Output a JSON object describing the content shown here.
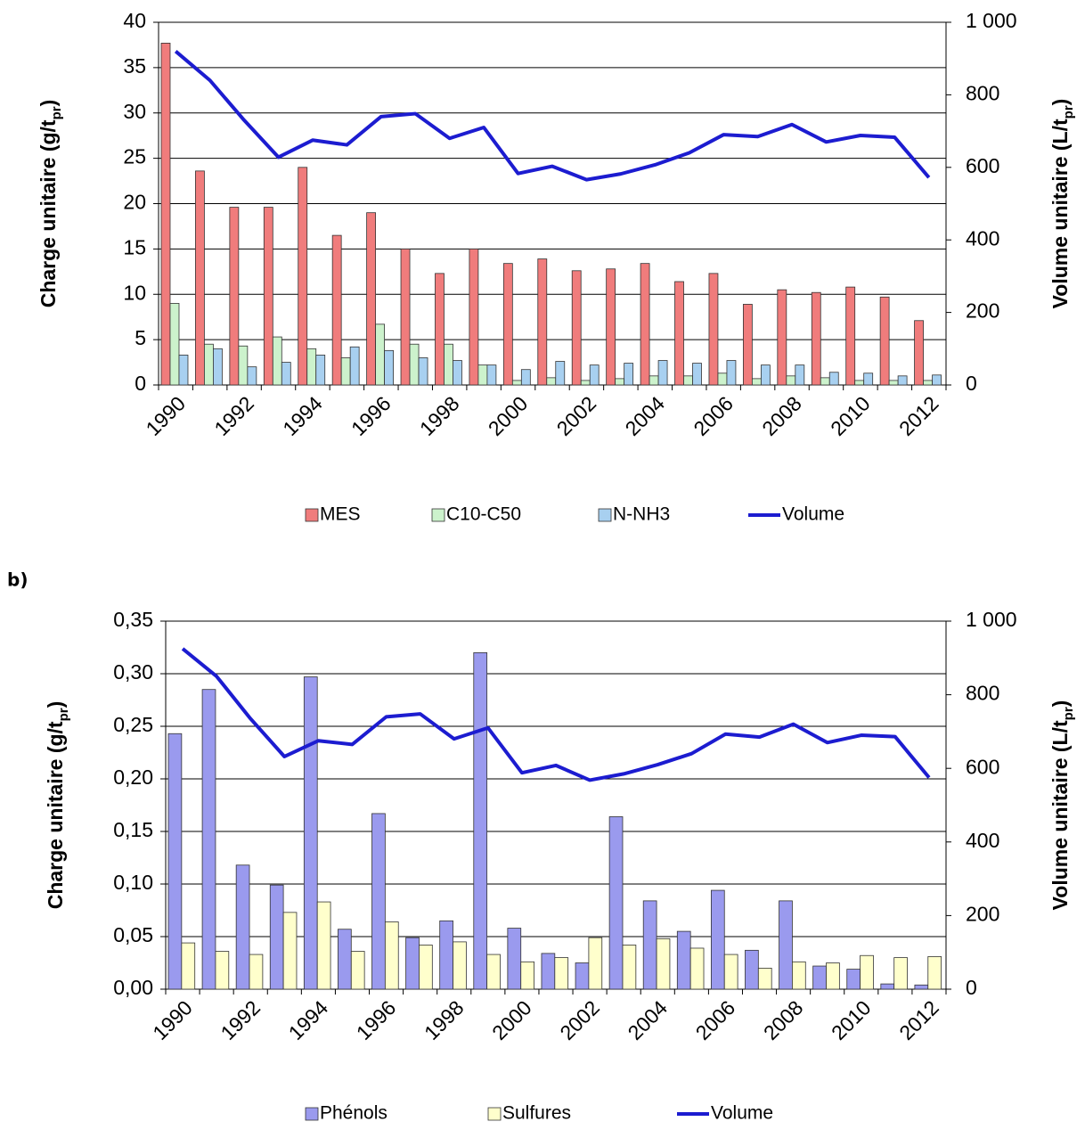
{
  "chart_data": [
    {
      "type": "bar",
      "categories": [
        "1990",
        null,
        "1992",
        null,
        "1994",
        null,
        "1996",
        null,
        "1998",
        null,
        "2000",
        null,
        "2002",
        null,
        "2004",
        null,
        "2006",
        null,
        "2008",
        null,
        "2010",
        null,
        "2012"
      ],
      "y_label": [
        "Charge unitaire (g/t",
        "pr",
        ")"
      ],
      "y2_label": [
        "Volume unitaire (L/t",
        "pr",
        ")"
      ],
      "ylim": [
        0,
        40
      ],
      "yticks": [
        0,
        5,
        10,
        15,
        20,
        25,
        30,
        35,
        40
      ],
      "y2lim": [
        0,
        1000
      ],
      "y2ticks": [
        0,
        200,
        400,
        600,
        800,
        {
          "value": 1000,
          "label": "1 000"
        }
      ],
      "grid": true,
      "series": [
        {
          "name": "MES",
          "color": "#f07c7c",
          "values": [
            37.7,
            23.6,
            19.6,
            19.6,
            24.0,
            16.5,
            19.0,
            15.0,
            12.3,
            15.0,
            13.4,
            13.9,
            12.6,
            12.8,
            13.4,
            11.4,
            12.3,
            8.9,
            10.5,
            10.2,
            10.8,
            9.7,
            7.1
          ]
        },
        {
          "name": "C10-C50",
          "color": "#ccf2cc",
          "values": [
            9.0,
            4.5,
            4.3,
            5.3,
            4.0,
            3.0,
            6.7,
            4.5,
            4.5,
            2.2,
            0.5,
            0.8,
            0.5,
            0.7,
            1.0,
            1.0,
            1.3,
            0.7,
            1.0,
            0.8,
            0.5,
            0.5,
            0.5
          ]
        },
        {
          "name": "N-NH3",
          "color": "#a8d0f0",
          "values": [
            3.3,
            4.0,
            2.0,
            2.5,
            3.3,
            4.2,
            3.8,
            3.0,
            2.7,
            2.2,
            1.7,
            2.6,
            2.2,
            2.4,
            2.7,
            2.4,
            2.7,
            2.2,
            2.2,
            1.4,
            1.3,
            1.0,
            1.1
          ]
        },
        {
          "name": "Volume",
          "type": "line",
          "axis": "y2",
          "color": "#1c1cd0",
          "values": [
            920,
            840,
            730,
            628,
            675,
            662,
            740,
            748,
            680,
            710,
            583,
            603,
            566,
            582,
            607,
            640,
            690,
            685,
            718,
            670,
            688,
            683,
            572
          ]
        }
      ]
    },
    {
      "type": "bar",
      "label": "b)",
      "categories": [
        "1990",
        null,
        "1992",
        null,
        "1994",
        null,
        "1996",
        null,
        "1998",
        null,
        "2000",
        null,
        "2002",
        null,
        "2004",
        null,
        "2006",
        null,
        "2008",
        null,
        "2010",
        null,
        "2012"
      ],
      "y_label": [
        "Charge unitaire (g/t",
        "pr",
        ")"
      ],
      "y2_label": [
        "Volume unitaire (L/t",
        "pr",
        ")"
      ],
      "ylim": [
        0,
        0.35
      ],
      "yticks": [
        {
          "value": 0,
          "label": "0,00"
        },
        {
          "value": 0.05,
          "label": "0,05"
        },
        {
          "value": 0.1,
          "label": "0,10"
        },
        {
          "value": 0.15,
          "label": "0,15"
        },
        {
          "value": 0.2,
          "label": "0,20"
        },
        {
          "value": 0.25,
          "label": "0,25"
        },
        {
          "value": 0.3,
          "label": "0,30"
        },
        {
          "value": 0.35,
          "label": "0,35"
        }
      ],
      "y2lim": [
        0,
        1000
      ],
      "y2ticks": [
        0,
        200,
        400,
        600,
        800,
        {
          "value": 1000,
          "label": "1 000"
        }
      ],
      "grid": true,
      "series": [
        {
          "name": "Phénols",
          "color": "#9a9aee",
          "values": [
            0.243,
            0.285,
            0.118,
            0.099,
            0.297,
            0.057,
            0.167,
            0.049,
            0.065,
            0.32,
            0.058,
            0.034,
            0.025,
            0.164,
            0.084,
            0.055,
            0.094,
            0.037,
            0.084,
            0.022,
            0.019,
            0.005,
            0.004
          ]
        },
        {
          "name": "Sulfures",
          "color": "#ffffcc",
          "values": [
            0.044,
            0.036,
            0.033,
            0.073,
            0.083,
            0.036,
            0.064,
            0.042,
            0.045,
            0.033,
            0.026,
            0.03,
            0.049,
            0.042,
            0.048,
            0.039,
            0.033,
            0.02,
            0.026,
            0.025,
            0.032,
            0.03,
            0.031
          ]
        },
        {
          "name": "Volume",
          "type": "line",
          "axis": "y2",
          "color": "#1c1cd0",
          "values": [
            925,
            850,
            735,
            632,
            675,
            665,
            740,
            748,
            680,
            710,
            588,
            608,
            568,
            585,
            610,
            640,
            693,
            685,
            720,
            670,
            690,
            686,
            575
          ]
        }
      ]
    }
  ]
}
